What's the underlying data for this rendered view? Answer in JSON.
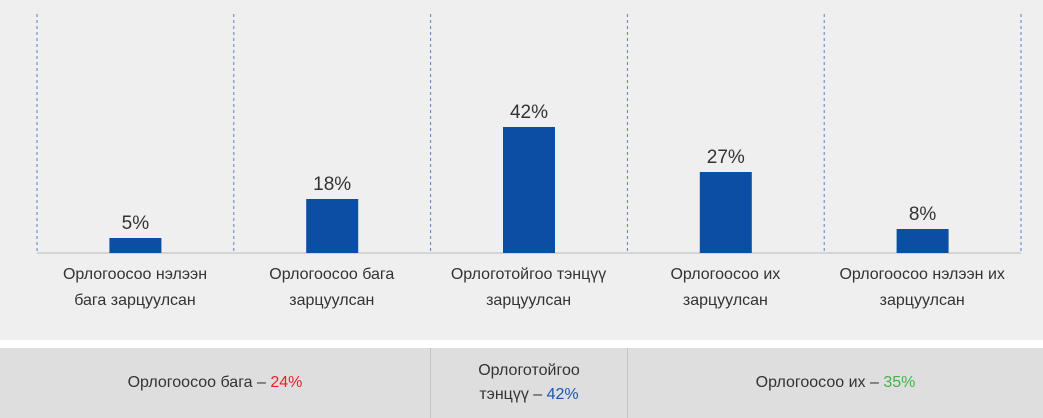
{
  "chart_data": {
    "type": "bar",
    "categories": [
      "Орлогоосоо нэлээн\nбага зарцуулсан",
      "Орлогоосоо бага\nзарцуулсан",
      "Орлоготойгоо тэнцүү\nзарцуулсан",
      "Орлогоосоо их\nзарцуулсан",
      "Орлогоосоо нэлээн их\nзарцуулсан"
    ],
    "values": [
      5,
      18,
      42,
      27,
      8
    ],
    "value_labels": [
      "5%",
      "18%",
      "42%",
      "27%",
      "8%"
    ],
    "color": "#0a4fa3"
  },
  "summary": [
    {
      "text": "Орлогоосоо бага –",
      "value": "24%",
      "color": "#e8202a"
    },
    {
      "text": "Орлоготойгоо тэнцүү –",
      "value": "42%",
      "color": "#1d56a8"
    },
    {
      "text": "Орлогоосоо их –",
      "value": "35%",
      "color": "#3db54a"
    }
  ]
}
